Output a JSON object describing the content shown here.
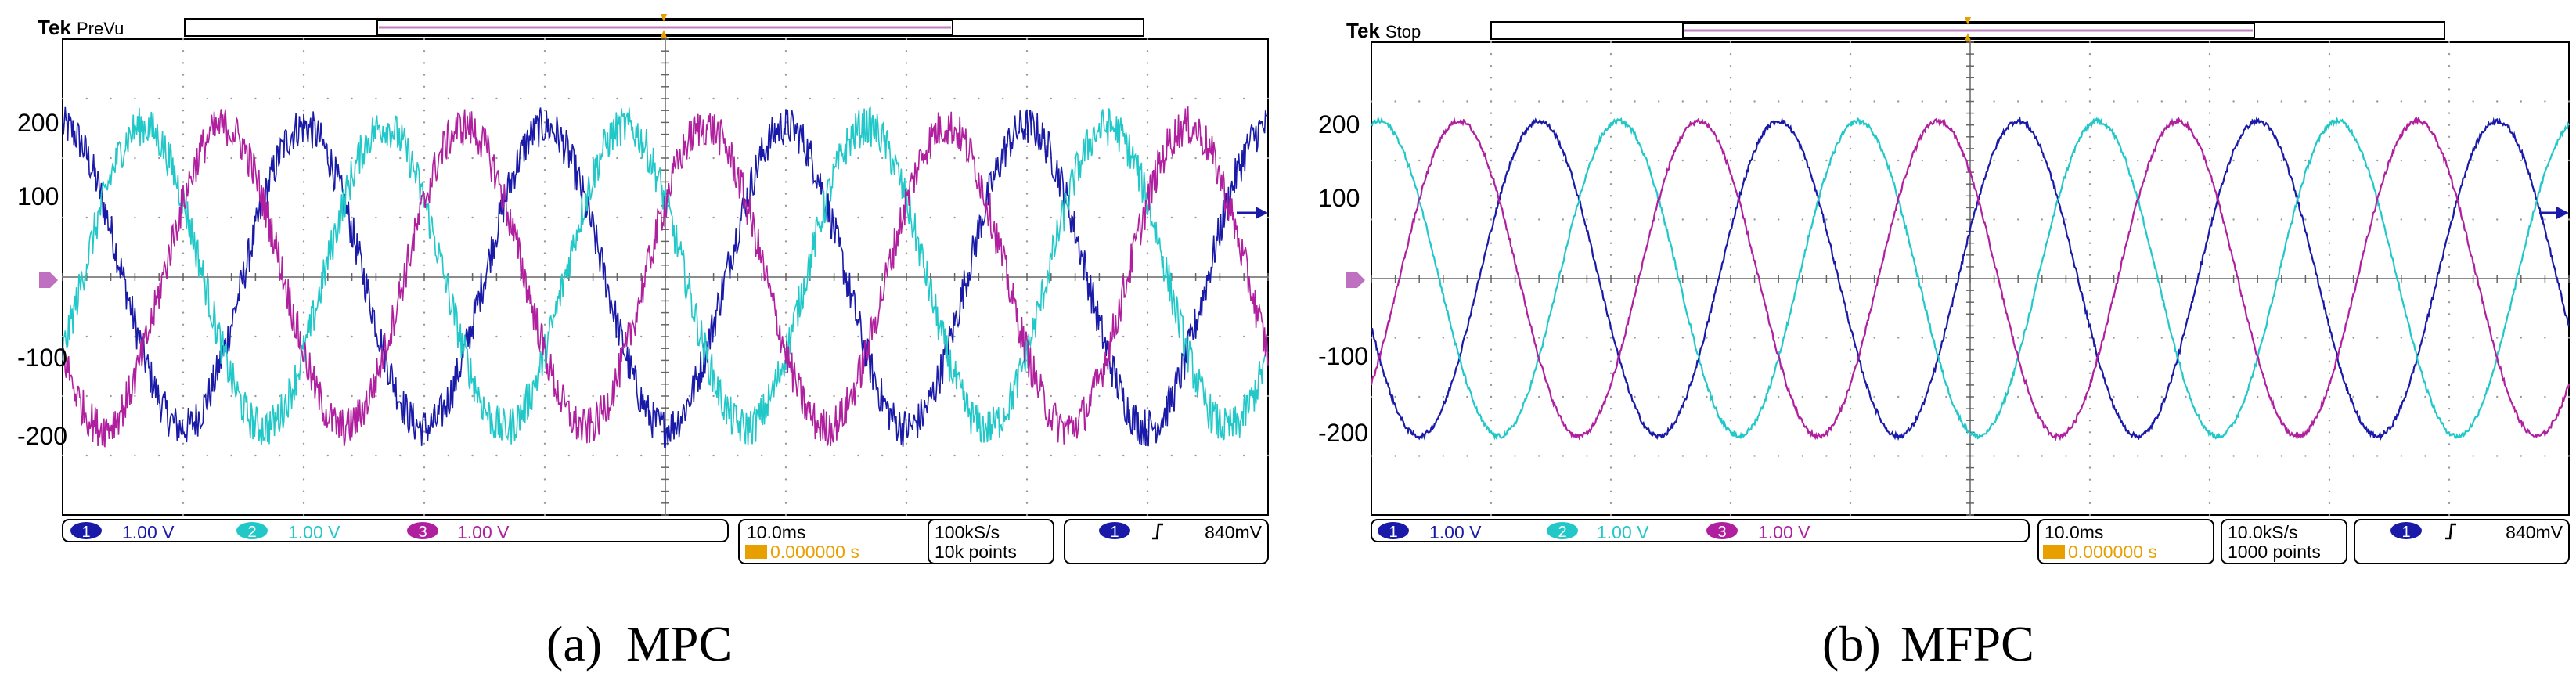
{
  "panels": [
    {
      "id": "a",
      "header": {
        "brand": "Tek",
        "status": "PreVu"
      },
      "y_tick_labels": [
        "200",
        "100",
        "-100",
        "-200"
      ],
      "channels": [
        {
          "badge": "1",
          "label": "1.00 V",
          "color": "#1a1aa8"
        },
        {
          "badge": "2",
          "label": "1.00 V",
          "color": "#22c8c8"
        },
        {
          "badge": "3",
          "label": "1.00 V",
          "color": "#b0209e"
        }
      ],
      "timebase": "10.0ms",
      "trigger_pos": "0.000000 s",
      "sample_rate": "100kS/s",
      "record_length": "10k points",
      "trigger_channel": "1",
      "trigger_level": "840mV",
      "caption": {
        "letter": "(a)",
        "name": "MPC"
      }
    },
    {
      "id": "b",
      "header": {
        "brand": "Tek",
        "status": "Stop"
      },
      "y_tick_labels": [
        "200",
        "100",
        "-100",
        "-200"
      ],
      "channels": [
        {
          "badge": "1",
          "label": "1.00 V",
          "color": "#1a1aa8"
        },
        {
          "badge": "2",
          "label": "1.00 V",
          "color": "#22c8c8"
        },
        {
          "badge": "3",
          "label": "1.00 V",
          "color": "#b0209e"
        }
      ],
      "timebase": "10.0ms",
      "trigger_pos": "0.000000 s",
      "sample_rate": "10.0kS/s",
      "record_length": "1000 points",
      "trigger_channel": "1",
      "trigger_level": "840mV",
      "caption": {
        "letter": "(b)",
        "name": "MFPC"
      }
    }
  ],
  "chart_data": [
    {
      "type": "line",
      "title": "(a) MPC",
      "ylim": [
        -300,
        300
      ],
      "xlim": [
        0,
        100
      ],
      "x_unit": "ms",
      "grid": true,
      "frequency_hz": 50,
      "series": [
        {
          "amplitude": 190,
          "phase_deg": 90,
          "noise": 25,
          "color": "#1a1aa8"
        },
        {
          "amplitude": 190,
          "phase_deg": -30,
          "noise": 25,
          "color": "#22c8c8"
        },
        {
          "amplitude": 190,
          "phase_deg": 210,
          "noise": 25,
          "color": "#b0209e"
        }
      ]
    },
    {
      "type": "line",
      "title": "(b) MFPC",
      "ylim": [
        -300,
        300
      ],
      "xlim": [
        0,
        100
      ],
      "x_unit": "ms",
      "grid": true,
      "frequency_hz": 50,
      "series": [
        {
          "amplitude": 200,
          "phase_deg": -162,
          "noise": 3,
          "color": "#1a1aa8"
        },
        {
          "amplitude": 200,
          "phase_deg": 78,
          "noise": 3,
          "color": "#22c8c8"
        },
        {
          "amplitude": 200,
          "phase_deg": -42,
          "noise": 3,
          "color": "#b0209e"
        }
      ]
    }
  ]
}
